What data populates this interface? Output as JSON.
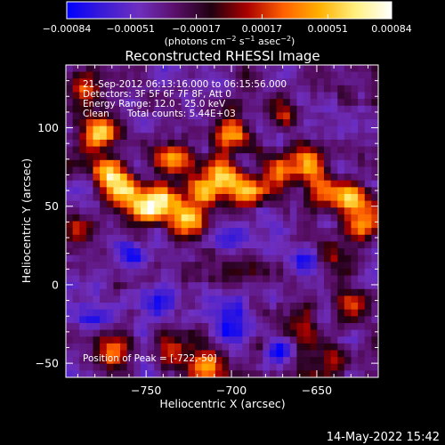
{
  "chart_data": {
    "type": "heatmap",
    "title": "Reconstructed RHESSI Image",
    "xlabel": "Heliocentric X (arcsec)",
    "ylabel": "Heliocentric Y (arcsec)",
    "xlim": [
      -797,
      -614
    ],
    "ylim": [
      -59,
      140
    ],
    "xticks": [
      -750,
      -700,
      -650
    ],
    "yticks": [
      -50,
      0,
      50,
      100
    ],
    "xtick_labels": [
      "−750",
      "−700",
      "−650"
    ],
    "ytick_labels": [
      "−50",
      "0",
      "50",
      "100"
    ],
    "colorbar": {
      "range": [
        -0.00084,
        0.00084
      ],
      "ticks": [
        -0.00084,
        -0.00051,
        -0.00017,
        0.00017,
        0.00051,
        0.00084
      ],
      "tick_labels": [
        "−0.00084",
        "−0.00051",
        "−0.00017",
        "0.00017",
        "0.00051",
        "0.00084"
      ],
      "units_base": "(photons cm",
      "units_sup1": "−2",
      "units_mid1": " s",
      "units_sup2": "−1",
      "units_mid2": " asec",
      "units_sup3": "−2",
      "units_end": ")",
      "colors": [
        "#0000ff",
        "#3b1bd6",
        "#6f2fbf",
        "#5a0f6a",
        "#200010",
        "#aa0000",
        "#ff6000",
        "#ffb000",
        "#fff080",
        "#ffffff"
      ]
    },
    "annotations": [
      "21-Sep-2012 06:13:16.000 to 06:15:56.000",
      "Detectors: 3F 5F 6F 7F 8F, Att 0",
      "Energy Range: 12.0 - 25.0 keV",
      "Clean      Total counts: 5.44E+03"
    ],
    "peak_label": "Position of Peak = [-722,-50]",
    "peak_position": [
      -722,
      -50
    ],
    "hotspots": [
      {
        "x": -778,
        "y": 97,
        "intensity": 1.0
      },
      {
        "x": -772,
        "y": 70,
        "intensity": 0.9
      },
      {
        "x": -762,
        "y": 60,
        "intensity": 0.95
      },
      {
        "x": -752,
        "y": 48,
        "intensity": 1.0
      },
      {
        "x": -740,
        "y": 55,
        "intensity": 0.9
      },
      {
        "x": -735,
        "y": 80,
        "intensity": 0.85
      },
      {
        "x": -727,
        "y": 42,
        "intensity": 0.9
      },
      {
        "x": -716,
        "y": 60,
        "intensity": 0.85
      },
      {
        "x": -705,
        "y": 70,
        "intensity": 1.0
      },
      {
        "x": -700,
        "y": 95,
        "intensity": 0.8
      },
      {
        "x": -690,
        "y": 60,
        "intensity": 0.85
      },
      {
        "x": -672,
        "y": 72,
        "intensity": 0.7
      },
      {
        "x": -655,
        "y": 78,
        "intensity": 0.8
      },
      {
        "x": -648,
        "y": 60,
        "intensity": 0.75
      },
      {
        "x": -630,
        "y": 55,
        "intensity": 0.95
      },
      {
        "x": -622,
        "y": 38,
        "intensity": 0.85
      },
      {
        "x": -642,
        "y": 20,
        "intensity": 0.6
      },
      {
        "x": -668,
        "y": 110,
        "intensity": 0.5
      },
      {
        "x": -715,
        "y": -52,
        "intensity": 1.0
      },
      {
        "x": -735,
        "y": -42,
        "intensity": 0.6
      },
      {
        "x": -770,
        "y": -42,
        "intensity": 0.7
      },
      {
        "x": -660,
        "y": -30,
        "intensity": 0.65
      },
      {
        "x": -628,
        "y": -12,
        "intensity": 0.6
      },
      {
        "x": -640,
        "y": -48,
        "intensity": 0.5
      },
      {
        "x": -790,
        "y": 35,
        "intensity": 0.6
      },
      {
        "x": -785,
        "y": 125,
        "intensity": 0.6
      },
      {
        "x": -690,
        "y": 10,
        "intensity": 0.35
      }
    ],
    "coldspots": [
      {
        "x": -760,
        "y": 20
      },
      {
        "x": -742,
        "y": -10
      },
      {
        "x": -700,
        "y": -30
      },
      {
        "x": -672,
        "y": -40
      },
      {
        "x": -700,
        "y": -15
      },
      {
        "x": -780,
        "y": -20
      },
      {
        "x": -700,
        "y": 30
      },
      {
        "x": -655,
        "y": 15
      }
    ]
  },
  "footer": {
    "timestamp": "14-May-2022 15:42"
  }
}
